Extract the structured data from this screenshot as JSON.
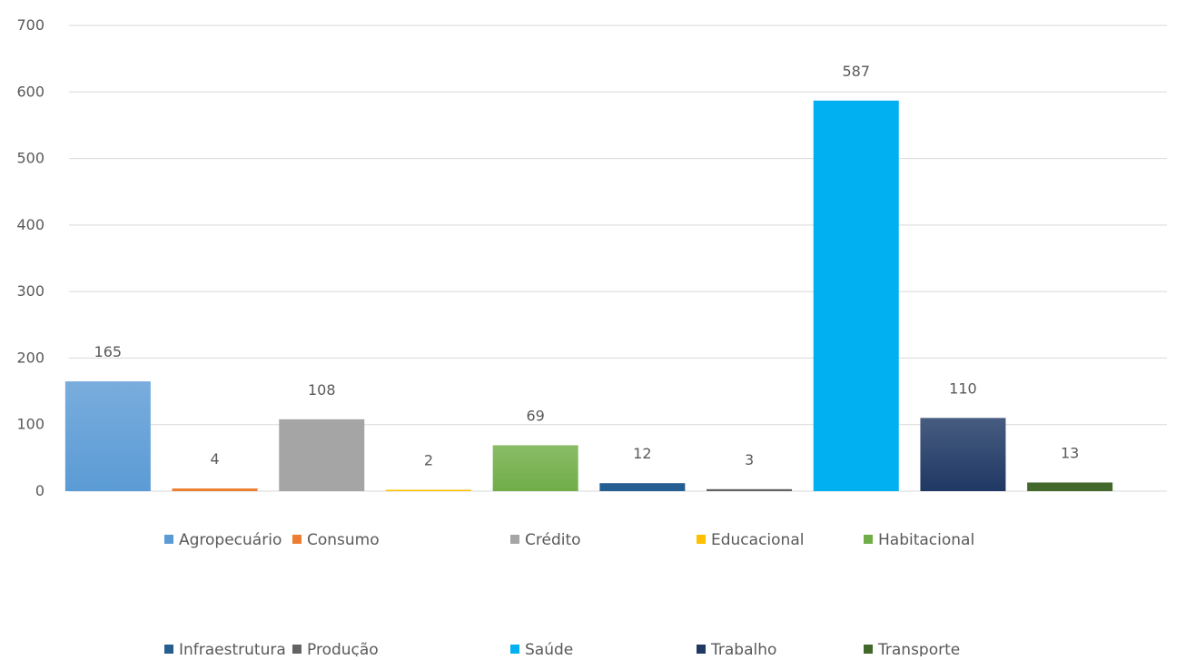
{
  "chart_data": {
    "type": "bar",
    "title": "",
    "xlabel": "",
    "ylabel": "",
    "ylim": [
      0,
      700
    ],
    "yticks": [
      0,
      100,
      200,
      300,
      400,
      500,
      600,
      700
    ],
    "grid": true,
    "legend_position": "bottom",
    "series": [
      {
        "name": "Agropecuário",
        "value": 165,
        "color": "#5b9bd5",
        "gradient": true
      },
      {
        "name": "Consumo",
        "value": 4,
        "color": "#ed7d31",
        "gradient": false
      },
      {
        "name": "Crédito",
        "value": 108,
        "color": "#a5a5a5",
        "gradient": false
      },
      {
        "name": "Educacional",
        "value": 2,
        "color": "#ffc000",
        "gradient": false
      },
      {
        "name": "Habitacional",
        "value": 69,
        "color": "#70ad47",
        "gradient": true
      },
      {
        "name": "Infraestrutura",
        "value": 12,
        "color": "#255e91",
        "gradient": false
      },
      {
        "name": "Produção",
        "value": 3,
        "color": "#636363",
        "gradient": false
      },
      {
        "name": "Saúde",
        "value": 587,
        "color": "#00b0f0",
        "gradient": false
      },
      {
        "name": "Trabalho",
        "value": 110,
        "color": "#1f3864",
        "gradient": true
      },
      {
        "name": "Transporte",
        "value": 13,
        "color": "#43682b",
        "gradient": false
      }
    ]
  }
}
